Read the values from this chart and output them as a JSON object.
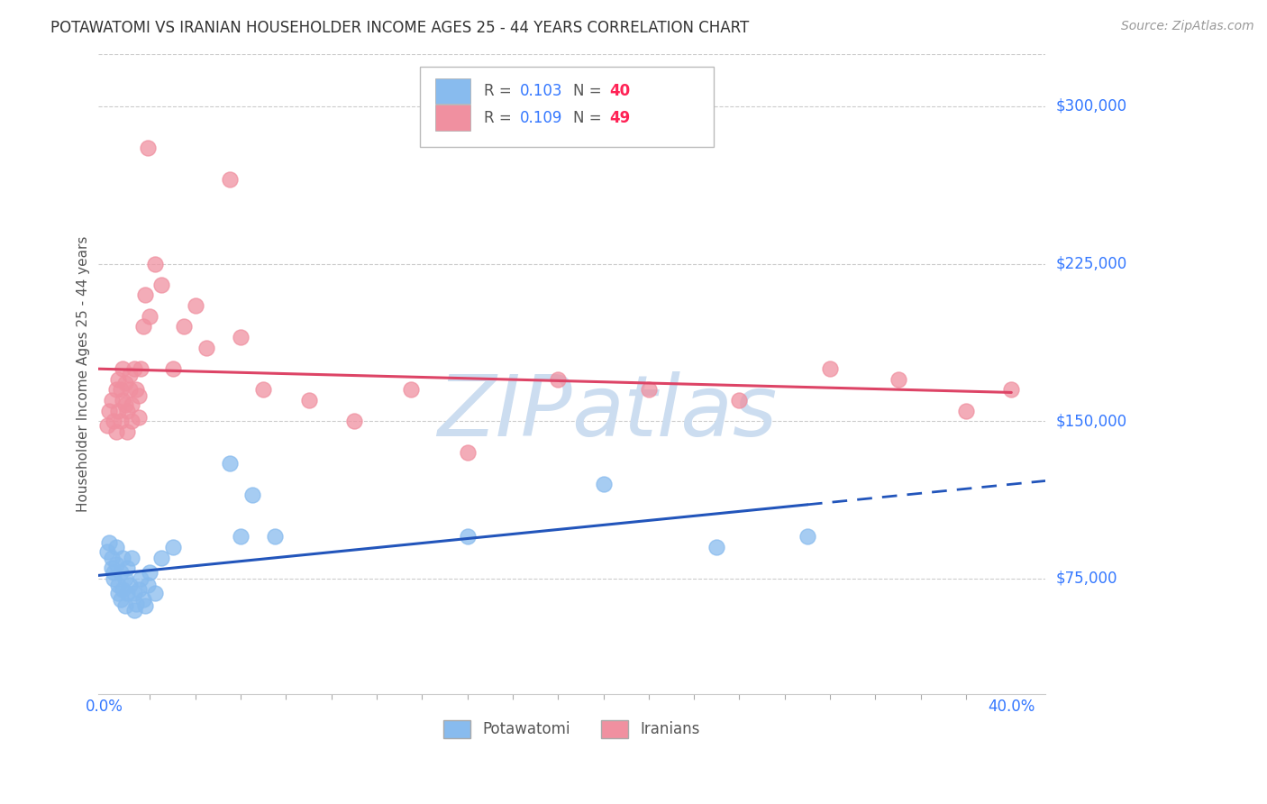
{
  "title": "POTAWATOMI VS IRANIAN HOUSEHOLDER INCOME AGES 25 - 44 YEARS CORRELATION CHART",
  "source": "Source: ZipAtlas.com",
  "ylabel": "Householder Income Ages 25 - 44 years",
  "ytick_labels": [
    "$75,000",
    "$150,000",
    "$225,000",
    "$300,000"
  ],
  "ytick_vals": [
    75000,
    150000,
    225000,
    300000
  ],
  "ymin": 20000,
  "ymax": 325000,
  "xmin": -0.003,
  "xmax": 0.415,
  "pot_r": "0.103",
  "pot_n": "40",
  "iran_r": "0.109",
  "iran_n": "49",
  "legend_r_color": "#3377ff",
  "legend_n_color": "#ff2255",
  "potawatomi_color": "#88bbee",
  "iranian_color": "#f090a0",
  "potawatomi_line_color": "#2255bb",
  "iranian_line_color": "#dd4466",
  "watermark_color": "#ccddf0",
  "grid_color": "#cccccc",
  "tick_color": "#3377ff",
  "title_color": "#333333",
  "source_color": "#999999",
  "ylabel_color": "#555555",
  "potawatomi_x": [
    0.001,
    0.002,
    0.003,
    0.003,
    0.004,
    0.004,
    0.005,
    0.005,
    0.006,
    0.006,
    0.007,
    0.007,
    0.008,
    0.008,
    0.009,
    0.009,
    0.01,
    0.01,
    0.011,
    0.012,
    0.013,
    0.013,
    0.014,
    0.015,
    0.016,
    0.017,
    0.018,
    0.019,
    0.02,
    0.022,
    0.025,
    0.03,
    0.055,
    0.06,
    0.065,
    0.075,
    0.16,
    0.22,
    0.27,
    0.31
  ],
  "potawatomi_y": [
    88000,
    92000,
    80000,
    85000,
    75000,
    78000,
    82000,
    90000,
    68000,
    72000,
    65000,
    78000,
    70000,
    85000,
    62000,
    75000,
    68000,
    80000,
    72000,
    85000,
    60000,
    68000,
    63000,
    70000,
    75000,
    65000,
    62000,
    72000,
    78000,
    68000,
    85000,
    90000,
    130000,
    95000,
    115000,
    95000,
    95000,
    120000,
    90000,
    95000
  ],
  "iranian_x": [
    0.001,
    0.002,
    0.003,
    0.004,
    0.005,
    0.005,
    0.006,
    0.006,
    0.007,
    0.007,
    0.008,
    0.008,
    0.009,
    0.009,
    0.01,
    0.01,
    0.011,
    0.011,
    0.012,
    0.012,
    0.013,
    0.014,
    0.015,
    0.015,
    0.016,
    0.017,
    0.018,
    0.019,
    0.02,
    0.022,
    0.025,
    0.03,
    0.035,
    0.04,
    0.045,
    0.055,
    0.06,
    0.07,
    0.09,
    0.11,
    0.135,
    0.16,
    0.2,
    0.24,
    0.28,
    0.32,
    0.35,
    0.38,
    0.4
  ],
  "iranian_y": [
    148000,
    155000,
    160000,
    150000,
    145000,
    165000,
    170000,
    155000,
    165000,
    150000,
    175000,
    160000,
    158000,
    168000,
    155000,
    145000,
    172000,
    165000,
    158000,
    150000,
    175000,
    165000,
    162000,
    152000,
    175000,
    195000,
    210000,
    280000,
    200000,
    225000,
    215000,
    175000,
    195000,
    205000,
    185000,
    265000,
    190000,
    165000,
    160000,
    150000,
    165000,
    135000,
    170000,
    165000,
    160000,
    175000,
    170000,
    155000,
    165000
  ]
}
